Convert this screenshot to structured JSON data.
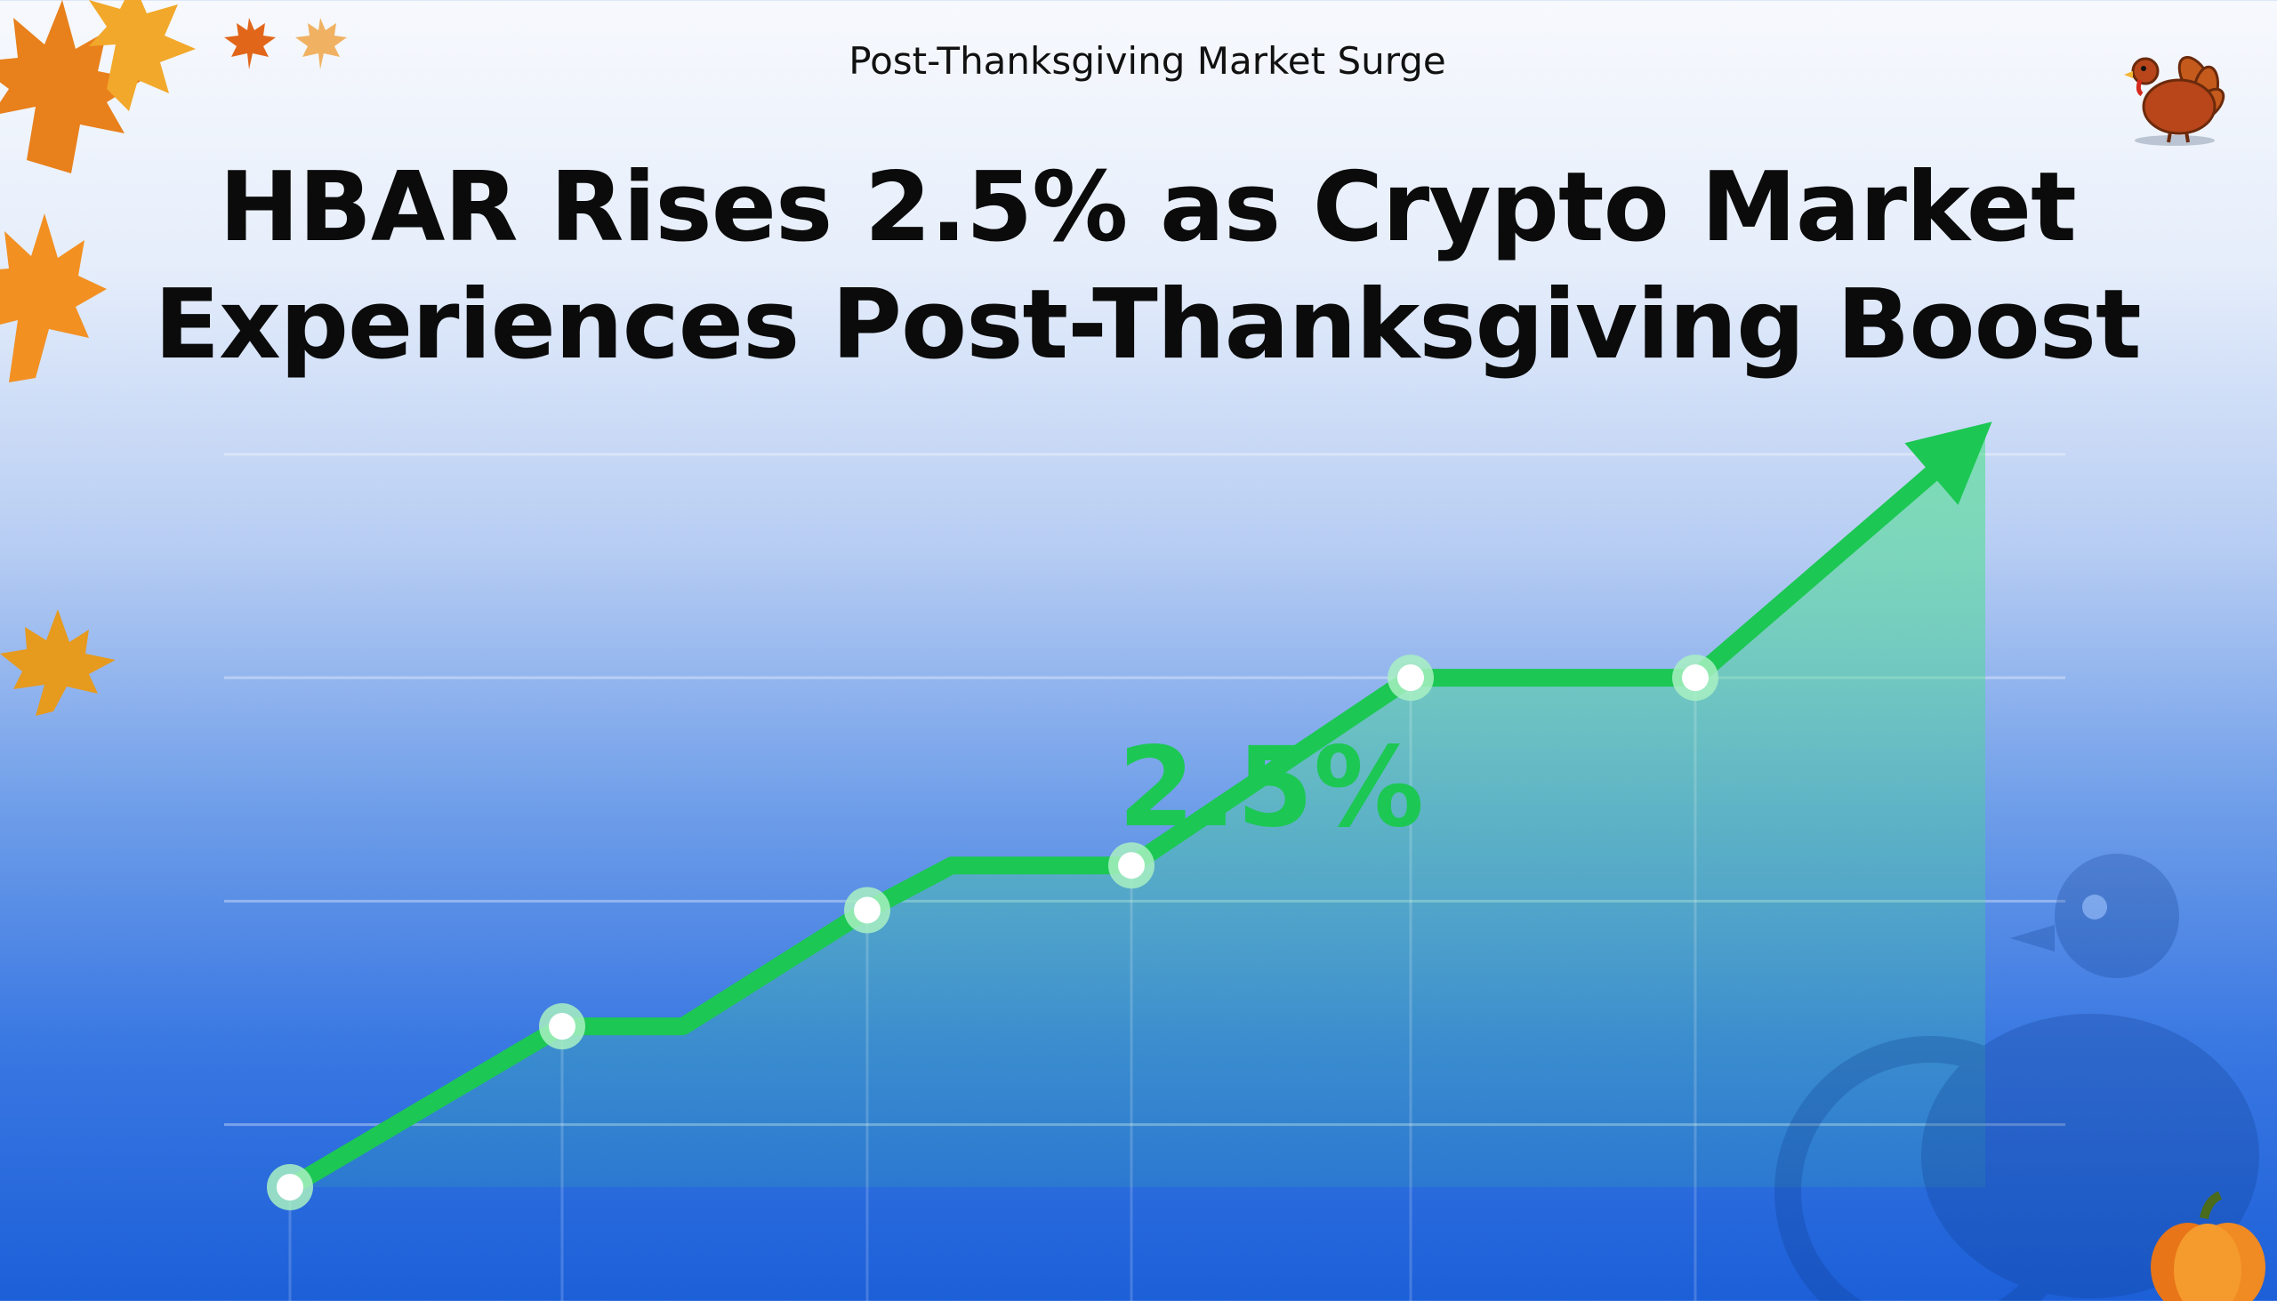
{
  "header": {
    "subtitle": "Post-Thanksgiving Market Surge",
    "headline_line1": "HBAR Rises 2.5% as Crypto Market",
    "headline_line2": "Experiences Post-Thanksgiving Boost"
  },
  "colors": {
    "line": "#1dc754",
    "annotation": "#1dc754",
    "area_fill": "#3ee07f",
    "grid": "#ffffff",
    "marker_fill": "#ffffff",
    "marker_ring": "#a8f0c2"
  },
  "icons": [
    "maple-leaf-icon",
    "turkey-icon",
    "pumpkin-icon"
  ],
  "chart_data": {
    "type": "line",
    "title": "",
    "xlabel": "",
    "ylabel": "",
    "annotation": "2.5%",
    "grid": true,
    "legend": "none",
    "ylim": [
      0,
      1
    ],
    "ygrid": [
      0.07,
      0.32,
      0.57,
      0.82
    ],
    "x": [
      0,
      1,
      2,
      3,
      4,
      5,
      6,
      7,
      8
    ],
    "y": [
      0.0,
      0.18,
      0.18,
      0.31,
      0.36,
      0.36,
      0.57,
      0.57,
      0.85
    ],
    "markers": [
      0,
      1,
      3,
      5,
      6,
      7
    ],
    "ends_with_arrow": true
  }
}
